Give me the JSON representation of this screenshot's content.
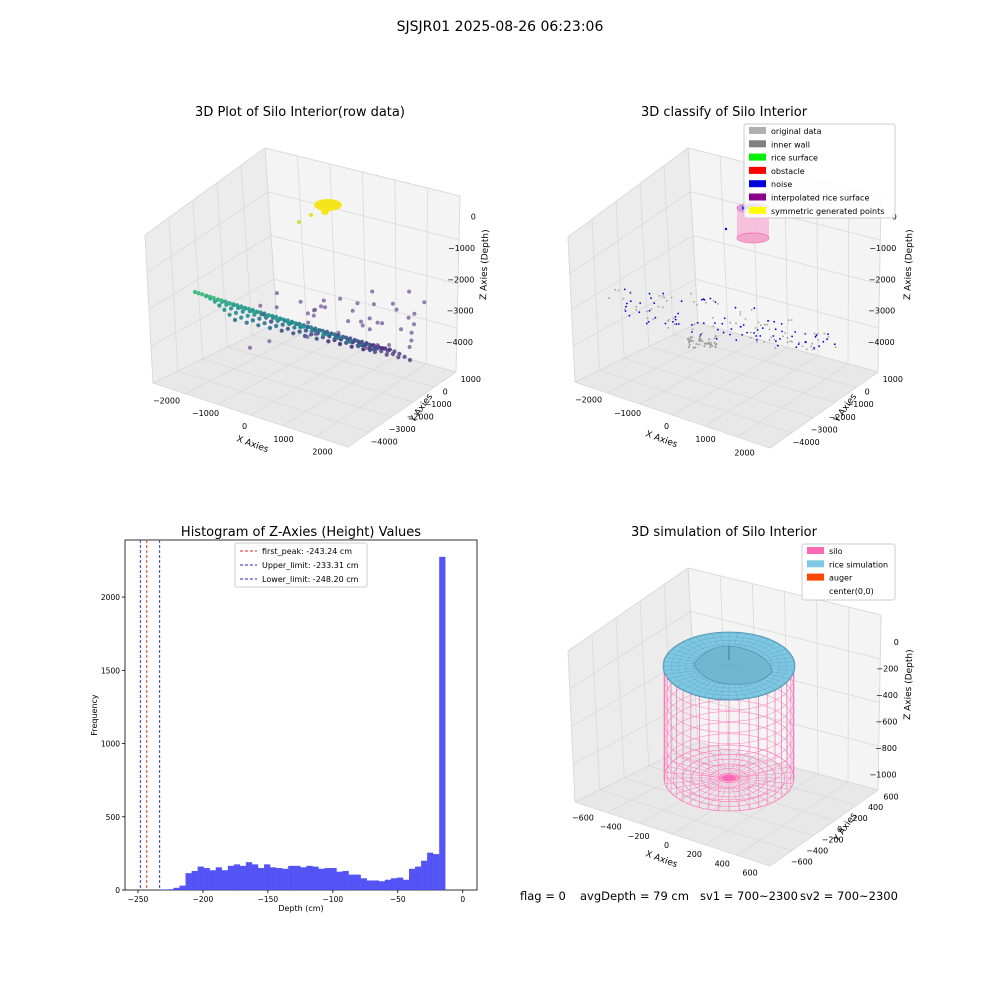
{
  "figure": {
    "suptitle": "SJSJR01 2025-08-26 06:23:06",
    "footer": {
      "flag": "flag = 0",
      "avg_depth": "avgDepth = 79 cm",
      "sv1": "sv1 = 700~2300",
      "sv2": "sv2 = 700~2300"
    }
  },
  "colors": {
    "hist_bar": "#4b4bf5",
    "first_peak": "#e02020",
    "limits": "#2323d6",
    "silo": "#ff69b4",
    "rice": "#7ec8e3",
    "auger": "#ff4500",
    "pane": "#f2f2f2",
    "grid": "#d9d9d9"
  },
  "chart_data": [
    {
      "type": "scatter",
      "projection": "3d",
      "title": "3D Plot of Silo Interior(row data)",
      "xlabel": "X Axies",
      "ylabel": "Y Axies",
      "zlabel": "Z Axies (Depth)",
      "x_ticks": [
        "−2000",
        "−1000",
        "0",
        "1000",
        "2000"
      ],
      "y_ticks": [
        "1000",
        "0",
        "−1000",
        "−2000",
        "−3000",
        "−4000"
      ],
      "z_ticks": [
        "0",
        "−1000",
        "−2000",
        "−3000",
        "−4000"
      ],
      "xlim": [
        -2300,
        2500
      ],
      "ylim": [
        -4500,
        1500
      ],
      "zlim": [
        -4600,
        300
      ],
      "colormap": "viridis"
    },
    {
      "type": "scatter",
      "projection": "3d",
      "title": "3D classify of Silo Interior",
      "xlabel": "X Axies",
      "ylabel": "Y Axies",
      "zlabel": "Z Axies (Depth)",
      "x_ticks": [
        "−2000",
        "−1000",
        "0",
        "1000",
        "2000"
      ],
      "y_ticks": [
        "1000",
        "0",
        "−1000",
        "−2000",
        "−3000",
        "−4000"
      ],
      "z_ticks": [
        "0",
        "−1000",
        "−2000",
        "−3000",
        "−4000"
      ],
      "legend": [
        {
          "label": "original data",
          "color": "#b0b0b0"
        },
        {
          "label": "inner wall",
          "color": "#808080"
        },
        {
          "label": "rice surface",
          "color": "#00ee00"
        },
        {
          "label": "obstacle",
          "color": "#ff0000"
        },
        {
          "label": "noise",
          "color": "#0000dd"
        },
        {
          "label": "interpolated rice surface",
          "color": "#8b008b"
        },
        {
          "label": "symmetric generated points",
          "color": "#ffff00"
        }
      ],
      "legend_loc": "upper right"
    },
    {
      "type": "bar",
      "title": "Histogram of Z-Axies (Height) Values",
      "xlabel": "Depth (cm)",
      "ylabel": "Frequency",
      "xlim": [
        -260,
        11
      ],
      "ylim": [
        0,
        2390
      ],
      "x_ticks": [
        -250,
        -200,
        -150,
        -100,
        -50,
        0
      ],
      "y_ticks": [
        0,
        500,
        1000,
        1500,
        2000
      ],
      "x_tick_labels": [
        "−250",
        "−200",
        "−150",
        "−100",
        "−50",
        "0"
      ],
      "y_tick_labels": [
        "0",
        "500",
        "1000",
        "1500",
        "2000"
      ],
      "bin_width": 4.65,
      "bin_start": -232,
      "values": [
        3,
        5,
        15,
        30,
        115,
        130,
        160,
        150,
        135,
        155,
        135,
        165,
        175,
        165,
        190,
        175,
        150,
        175,
        155,
        150,
        145,
        165,
        165,
        155,
        165,
        160,
        145,
        150,
        150,
        125,
        130,
        105,
        105,
        80,
        65,
        65,
        60,
        70,
        80,
        85,
        70,
        145,
        160,
        200,
        255,
        245,
        2275
      ],
      "vlines": [
        {
          "label": "first_peak: -243.24 cm",
          "x": -243.24,
          "color": "#e02020"
        },
        {
          "label": "Upper_limit: -233.31 cm",
          "x": -233.31,
          "color": "#2323d6"
        },
        {
          "label": "Lower_limit: -248.20 cm",
          "x": -248.2,
          "color": "#2323d6"
        }
      ],
      "legend_loc": "upper center"
    },
    {
      "type": "surface",
      "projection": "3d",
      "title": "3D simulation of Silo Interior",
      "xlabel": "X Axies",
      "ylabel": "Y Axies",
      "zlabel": "Z Axies (Depth)",
      "x_ticks": [
        "−600",
        "−400",
        "−200",
        "0",
        "200",
        "400",
        "600"
      ],
      "y_ticks": [
        "600",
        "400",
        "200",
        "0",
        "−200",
        "−400",
        "−600"
      ],
      "z_ticks": [
        "0",
        "−200",
        "−400",
        "−600",
        "−800",
        "−1000"
      ],
      "legend": [
        {
          "label": "silo",
          "color": "#ff69b4"
        },
        {
          "label": "rice simulation",
          "color": "#7ec8e3"
        },
        {
          "label": "auger",
          "color": "#ff4500"
        },
        {
          "label": "center(0,0)",
          "color": "#ffffff"
        }
      ],
      "legend_loc": "upper right"
    }
  ]
}
